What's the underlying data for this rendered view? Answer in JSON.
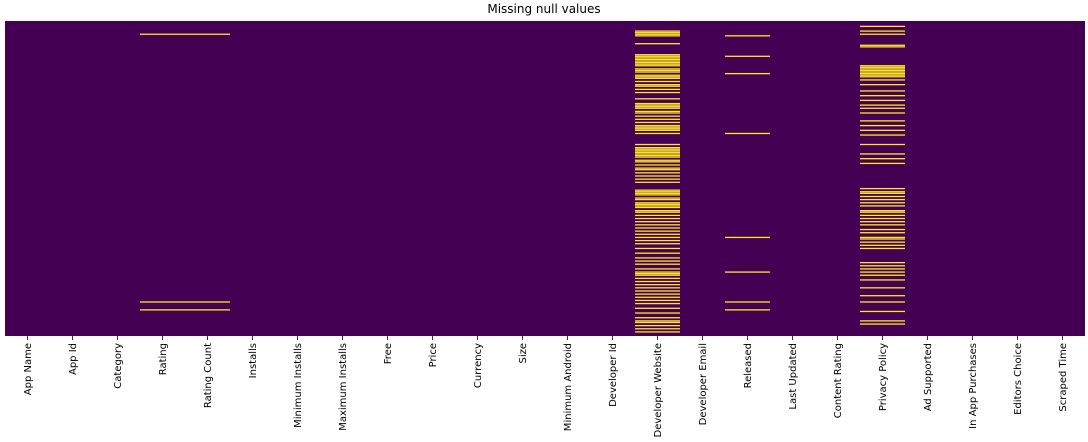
{
  "chart_data": {
    "type": "heatmap",
    "title": "Missing null values",
    "columns": [
      "App Name",
      "App Id",
      "Category",
      "Rating",
      "Rating Count",
      "Installs",
      "Minimum Installs",
      "Maximum Installs",
      "Free",
      "Price",
      "Currency",
      "Size",
      "Minimum Android",
      "Developer Id",
      "Developer Website",
      "Developer Email",
      "Released",
      "Last Updated",
      "Content Rating",
      "Privacy Policy",
      "Ad Supported",
      "In App Purchases",
      "Editors Choice",
      "Scraped Time"
    ],
    "yticks": "none",
    "colorbar": false,
    "colors": {
      "present": "#440154",
      "missing": "#fde725"
    },
    "missing_rows": {
      "Rating": [
        0.04,
        0.89,
        0.915
      ],
      "Rating Count": [
        0.04,
        0.89,
        0.915
      ],
      "Released": [
        0.045,
        0.11,
        0.165,
        0.355,
        0.685,
        0.795,
        0.89,
        0.915
      ],
      "Developer Website": [
        0.03,
        0.035,
        0.04,
        0.045,
        0.07,
        0.105,
        0.11,
        0.115,
        0.12,
        0.125,
        0.13,
        0.135,
        0.14,
        0.15,
        0.155,
        0.16,
        0.17,
        0.175,
        0.18,
        0.19,
        0.2,
        0.205,
        0.215,
        0.225,
        0.245,
        0.26,
        0.265,
        0.27,
        0.275,
        0.285,
        0.29,
        0.3,
        0.31,
        0.32,
        0.33,
        0.335,
        0.34,
        0.345,
        0.355,
        0.39,
        0.4,
        0.405,
        0.41,
        0.415,
        0.42,
        0.425,
        0.43,
        0.44,
        0.445,
        0.455,
        0.465,
        0.47,
        0.48,
        0.49,
        0.5,
        0.51,
        0.535,
        0.54,
        0.545,
        0.55,
        0.56,
        0.565,
        0.575,
        0.58,
        0.585,
        0.59,
        0.6,
        0.605,
        0.615,
        0.625,
        0.635,
        0.645,
        0.655,
        0.665,
        0.675,
        0.685,
        0.695,
        0.705,
        0.72,
        0.735,
        0.75,
        0.76,
        0.77,
        0.785,
        0.795,
        0.8,
        0.805,
        0.815,
        0.825,
        0.835,
        0.845,
        0.855,
        0.865,
        0.875,
        0.885,
        0.895,
        0.91,
        0.925,
        0.94,
        0.95,
        0.955,
        0.965,
        0.975,
        0.985
      ],
      "Privacy Policy": [
        0.015,
        0.03,
        0.04,
        0.075,
        0.08,
        0.14,
        0.145,
        0.15,
        0.155,
        0.16,
        0.165,
        0.17,
        0.175,
        0.185,
        0.2,
        0.22,
        0.235,
        0.25,
        0.265,
        0.275,
        0.29,
        0.315,
        0.33,
        0.345,
        0.36,
        0.39,
        0.42,
        0.435,
        0.45,
        0.53,
        0.54,
        0.545,
        0.555,
        0.565,
        0.575,
        0.585,
        0.6,
        0.605,
        0.615,
        0.625,
        0.635,
        0.645,
        0.66,
        0.67,
        0.685,
        0.69,
        0.7,
        0.71,
        0.72,
        0.765,
        0.775,
        0.785,
        0.795,
        0.805,
        0.82,
        0.845,
        0.87,
        0.89,
        0.92,
        0.95,
        0.96
      ]
    }
  }
}
